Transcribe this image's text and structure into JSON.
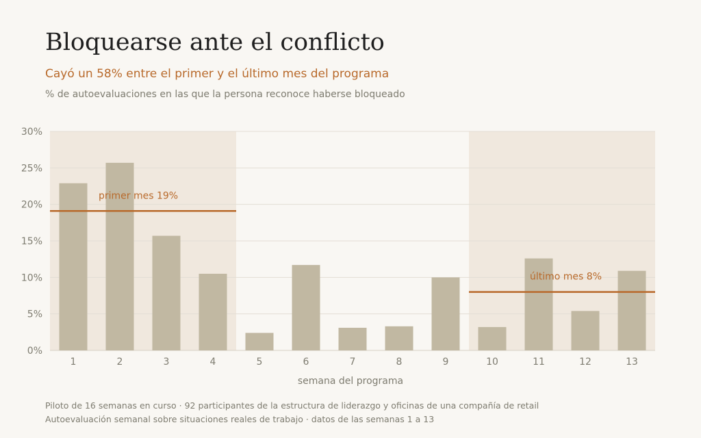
{
  "title": "Bloquearse ante el conflicto",
  "subtitle": "Cayó un 58% entre el primer y el último mes del programa",
  "description": "% de autoevaluaciones en las que la persona reconoce haberse bloqueado",
  "footnotes": [
    "Piloto de 16 semanas en curso · 92 participantes de la estructura de liderazgo y oficinas de una compañía de retail",
    "Autoevaluación semanal sobre situaciones reales de trabajo · datos de las semanas 1 a 13"
  ],
  "colors": {
    "bar": "#c1b8a2",
    "accent": "#b8692a",
    "highlight_band": "#f0e8de",
    "grid": "#e3ded5",
    "text_muted": "#7e7c70"
  },
  "chart_data": {
    "type": "bar",
    "categories": [
      "1",
      "2",
      "3",
      "4",
      "5",
      "6",
      "7",
      "8",
      "9",
      "10",
      "11",
      "12",
      "13"
    ],
    "values": [
      22.9,
      25.7,
      15.7,
      10.5,
      2.4,
      11.7,
      3.1,
      3.3,
      10.0,
      3.2,
      12.6,
      5.4,
      10.9
    ],
    "xlabel": "semana del programa",
    "ylabel": "",
    "ylim": [
      0,
      30
    ],
    "yticks": [
      0,
      5,
      10,
      15,
      20,
      25,
      30
    ],
    "ytick_labels": [
      "0%",
      "5%",
      "10%",
      "15%",
      "20%",
      "25%",
      "30%"
    ],
    "grid": true,
    "highlight_bands": [
      {
        "from": "1",
        "to": "4"
      },
      {
        "from": "10",
        "to": "13"
      }
    ],
    "reference_lines": [
      {
        "label": "primer mes  19%",
        "value": 19.1,
        "from": "1",
        "to": "4",
        "label_side": "left"
      },
      {
        "label": "último mes  8%",
        "value": 8.0,
        "from": "10",
        "to": "13",
        "label_side": "right"
      }
    ]
  }
}
